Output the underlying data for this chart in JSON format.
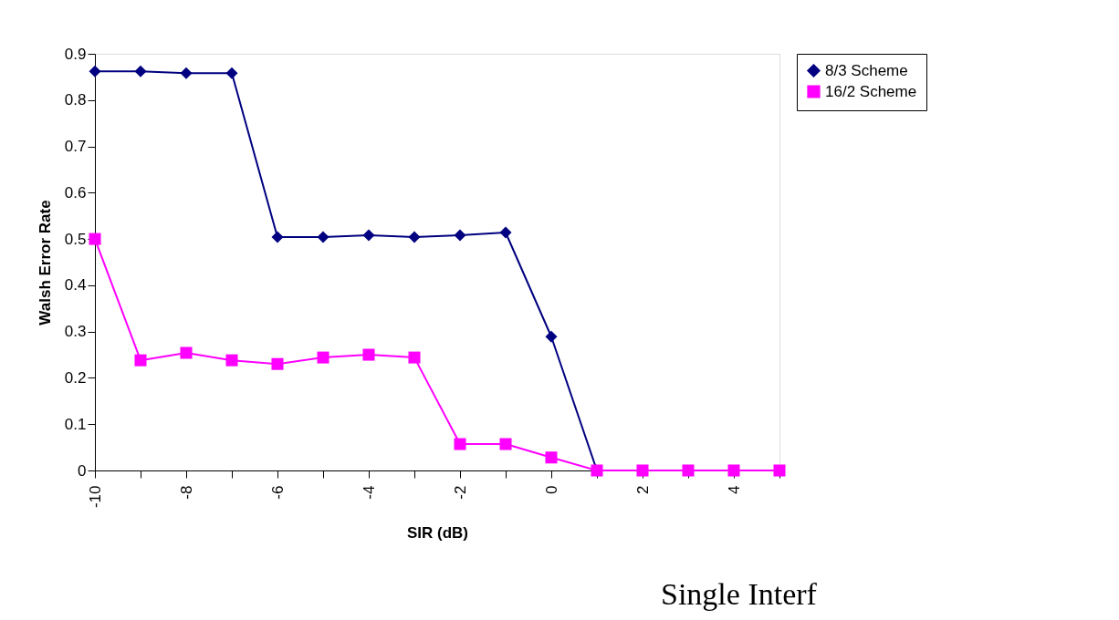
{
  "chart_data": {
    "type": "line",
    "xlabel": "SIR (dB)",
    "ylabel": "Walsh Error Rate",
    "x": [
      -10,
      -9,
      -8,
      -7,
      -6,
      -5,
      -4,
      -3,
      -2,
      -1,
      0,
      1,
      2,
      3,
      4,
      5
    ],
    "series": [
      {
        "name": "8/3 Scheme",
        "color": "#000080",
        "marker": "diamond",
        "values": [
          0.862,
          0.862,
          0.858,
          0.858,
          0.504,
          0.504,
          0.508,
          0.504,
          0.508,
          0.514,
          0.289,
          0,
          null,
          null,
          null,
          null
        ]
      },
      {
        "name": "16/2 Scheme",
        "color": "#ff00ff",
        "marker": "square",
        "values": [
          0.5,
          0.238,
          0.254,
          0.238,
          0.23,
          0.244,
          0.25,
          0.244,
          0.057,
          0.057,
          0.028,
          0,
          0,
          0,
          0,
          0
        ]
      }
    ],
    "xlim": [
      -10,
      5
    ],
    "xticks": [
      -10,
      {
        "value": -9,
        "label": null
      },
      -8,
      {
        "value": -7,
        "label": null
      },
      -6,
      {
        "value": -5,
        "label": null
      },
      -4,
      {
        "value": -3,
        "label": null
      },
      -2,
      {
        "value": -1,
        "label": null
      },
      0,
      {
        "value": 1,
        "label": null
      },
      2,
      {
        "value": 3,
        "label": null
      },
      4,
      {
        "value": 5,
        "label": null
      }
    ],
    "ylim": [
      0,
      0.9
    ],
    "yticks": [
      0,
      0.1,
      0.2,
      0.3,
      0.4,
      0.5,
      0.6,
      0.7,
      0.8,
      0.9
    ],
    "grid": false,
    "legend": "right",
    "line_style": "solid",
    "annotations": [
      "Single Interf"
    ]
  }
}
